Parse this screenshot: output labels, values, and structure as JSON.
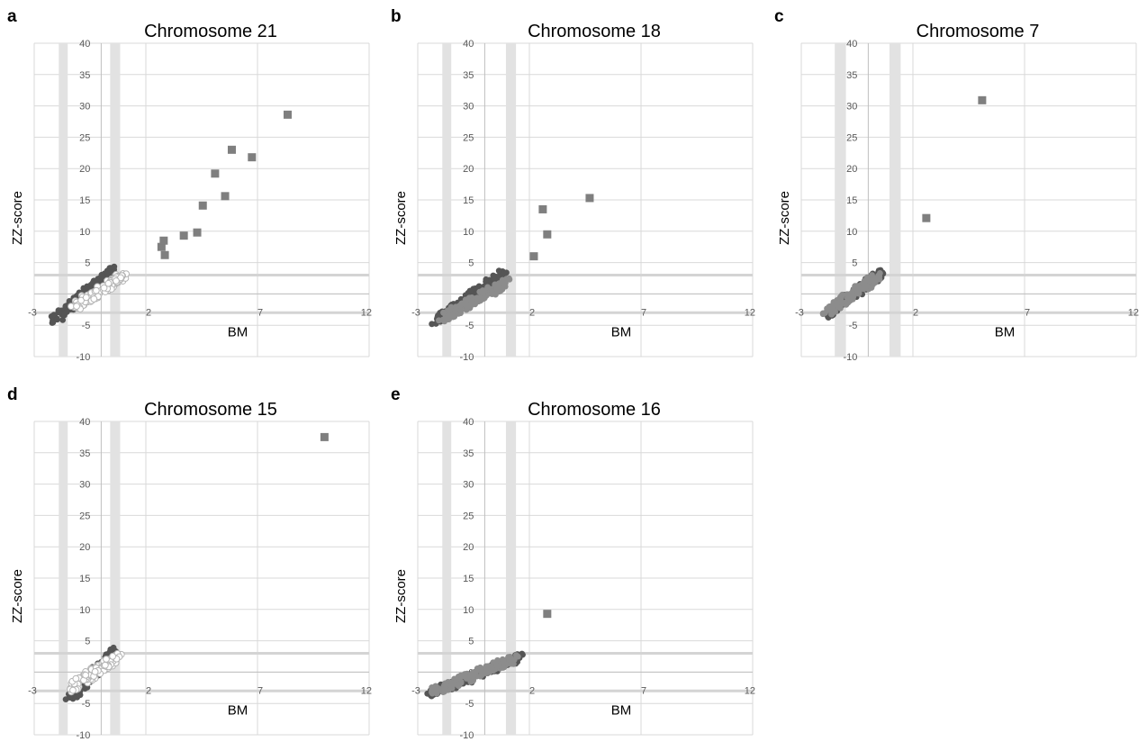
{
  "figure": {
    "panels": [
      {
        "letter": "a"
      },
      {
        "letter": "b"
      },
      {
        "letter": "c"
      },
      {
        "letter": "d"
      },
      {
        "letter": "e"
      }
    ]
  },
  "colors": {
    "grid": "#d9d9d9",
    "band": "#e2e2e2",
    "threshold_line": "#d4d4d4",
    "square_points": "#7f7f7f",
    "dark_points": "#555555",
    "mid_points": "#8c8c8c",
    "open_points": "#b5b5b5",
    "axis_text": "#595959"
  },
  "chart_data": [
    {
      "type": "scatter",
      "title": "Chromosome 21",
      "xlabel": "BM",
      "ylabel": "ZZ-score",
      "xlim": [
        -3,
        12
      ],
      "ylim": [
        -10,
        40
      ],
      "x_ticks": [
        -3,
        2,
        7,
        12
      ],
      "y_ticks": [
        -10,
        -5,
        0,
        5,
        10,
        15,
        20,
        25,
        30,
        35,
        40
      ],
      "x_tick_labels": [
        "-3",
        "2",
        "7",
        "12"
      ],
      "y_tick_labels": [
        "-10",
        "-5",
        "0",
        "5",
        "10",
        "15",
        "20",
        "25",
        "30",
        "35",
        "40"
      ],
      "grid": true,
      "vertical_bands": [
        [
          -1.9,
          -1.5
        ],
        [
          0.4,
          0.85
        ]
      ],
      "threshold_lines": [
        3,
        -3
      ],
      "series": [
        {
          "marker": "square",
          "x": [
            2.7,
            2.8,
            2.85,
            3.7,
            4.3,
            4.55,
            5.1,
            5.55,
            5.85,
            6.75,
            8.35
          ],
          "y": [
            7.5,
            8.5,
            6.2,
            9.3,
            9.8,
            14.1,
            19.2,
            15.6,
            23.0,
            21.8,
            28.6
          ]
        },
        {
          "marker": "dark-circle",
          "cluster_x": [
            -2.1,
            0.5
          ],
          "cluster_y": [
            -4.3,
            4.0
          ]
        },
        {
          "marker": "open-circle",
          "cluster_x": [
            -1.2,
            1.0
          ],
          "cluster_y": [
            -2.0,
            2.8
          ]
        }
      ]
    },
    {
      "type": "scatter",
      "title": "Chromosome 18",
      "xlabel": "BM",
      "ylabel": "ZZ-score",
      "xlim": [
        -3,
        12
      ],
      "ylim": [
        -10,
        40
      ],
      "x_ticks": [
        -3,
        2,
        7,
        12
      ],
      "y_ticks": [
        -10,
        -5,
        0,
        5,
        10,
        15,
        20,
        25,
        30,
        35,
        40
      ],
      "x_tick_labels": [
        "-3",
        "2",
        "7",
        "12"
      ],
      "y_tick_labels": [
        "-10",
        "-5",
        "0",
        "5",
        "10",
        "15",
        "20",
        "25",
        "30",
        "35",
        "40"
      ],
      "grid": true,
      "vertical_bands": [
        [
          -1.9,
          -1.5
        ],
        [
          0.95,
          1.4
        ]
      ],
      "threshold_lines": [
        3,
        -3
      ],
      "series": [
        {
          "marker": "square",
          "x": [
            2.2,
            2.6,
            2.8,
            4.7
          ],
          "y": [
            6.0,
            13.5,
            9.5,
            15.3
          ]
        },
        {
          "marker": "dark-circle",
          "cluster_x": [
            -2.2,
            0.9
          ],
          "cluster_y": [
            -4.2,
            3.5
          ]
        },
        {
          "marker": "mid-circle",
          "cluster_x": [
            -1.9,
            1.1
          ],
          "cluster_y": [
            -3.8,
            2.0
          ]
        }
      ]
    },
    {
      "type": "scatter",
      "title": "Chromosome 7",
      "xlabel": "BM",
      "ylabel": "ZZ-score",
      "xlim": [
        -3,
        12
      ],
      "ylim": [
        -10,
        40
      ],
      "x_ticks": [
        -3,
        2,
        7,
        12
      ],
      "y_ticks": [
        -10,
        -5,
        0,
        5,
        10,
        15,
        20,
        25,
        30,
        35,
        40
      ],
      "x_tick_labels": [
        "-3",
        "2",
        "7",
        "12"
      ],
      "y_tick_labels": [
        "-10",
        "-5",
        "0",
        "5",
        "10",
        "15",
        "20",
        "25",
        "30",
        "35",
        "40"
      ],
      "grid": true,
      "vertical_bands": [
        [
          -1.5,
          -1.0
        ],
        [
          0.95,
          1.45
        ]
      ],
      "threshold_lines": [
        3,
        -3
      ],
      "series": [
        {
          "marker": "square",
          "x": [
            2.6,
            5.1
          ],
          "y": [
            12.1,
            30.9
          ]
        },
        {
          "marker": "dark-circle",
          "cluster_x": [
            -1.8,
            0.6
          ],
          "cluster_y": [
            -3.3,
            3.5
          ]
        },
        {
          "marker": "mid-circle",
          "cluster_x": [
            -1.9,
            0.5
          ],
          "cluster_y": [
            -3.0,
            3.0
          ]
        }
      ]
    },
    {
      "type": "scatter",
      "title": "Chromosome 15",
      "xlabel": "BM",
      "ylabel": "ZZ-score",
      "xlim": [
        -3,
        12
      ],
      "ylim": [
        -10,
        40
      ],
      "x_ticks": [
        -3,
        2,
        7,
        12
      ],
      "y_ticks": [
        -10,
        -5,
        0,
        5,
        10,
        15,
        20,
        25,
        30,
        35,
        40
      ],
      "x_tick_labels": [
        "-3",
        "2",
        "7",
        "12"
      ],
      "y_tick_labels": [
        "-10",
        "-5",
        "0",
        "5",
        "10",
        "15",
        "20",
        "25",
        "30",
        "35",
        "40"
      ],
      "grid": true,
      "vertical_bands": [
        [
          -1.9,
          -1.5
        ],
        [
          0.4,
          0.85
        ]
      ],
      "threshold_lines": [
        3,
        -3
      ],
      "series": [
        {
          "marker": "square",
          "x": [
            10.0
          ],
          "y": [
            37.5
          ]
        },
        {
          "marker": "dark-circle",
          "cluster_x": [
            -1.5,
            0.6
          ],
          "cluster_y": [
            -4.6,
            3.4
          ]
        },
        {
          "marker": "open-circle",
          "cluster_x": [
            -1.4,
            0.8
          ],
          "cluster_y": [
            -2.5,
            2.5
          ]
        }
      ]
    },
    {
      "type": "scatter",
      "title": "Chromosome 16",
      "xlabel": "BM",
      "ylabel": "ZZ-score",
      "xlim": [
        -3,
        12
      ],
      "ylim": [
        -10,
        40
      ],
      "x_ticks": [
        -3,
        2,
        7,
        12
      ],
      "y_ticks": [
        -10,
        -5,
        0,
        5,
        10,
        15,
        20,
        25,
        30,
        35,
        40
      ],
      "x_tick_labels": [
        "-3",
        "2",
        "7",
        "12"
      ],
      "y_tick_labels": [
        "-10",
        "-5",
        "0",
        "5",
        "10",
        "15",
        "20",
        "25",
        "30",
        "35",
        "40"
      ],
      "grid": true,
      "vertical_bands": [
        [
          -1.9,
          -1.5
        ],
        [
          0.95,
          1.4
        ]
      ],
      "threshold_lines": [
        3,
        -3
      ],
      "series": [
        {
          "marker": "square",
          "x": [
            2.8
          ],
          "y": [
            9.3
          ]
        },
        {
          "marker": "dark-circle",
          "cluster_x": [
            -2.6,
            1.7
          ],
          "cluster_y": [
            -3.7,
            2.5
          ]
        },
        {
          "marker": "mid-circle",
          "cluster_x": [
            -2.4,
            1.4
          ],
          "cluster_y": [
            -3.2,
            2.2
          ]
        }
      ]
    }
  ]
}
